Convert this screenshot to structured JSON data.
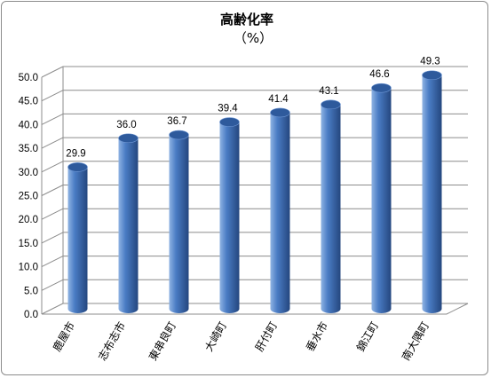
{
  "chart_data": {
    "type": "bar",
    "title": "高齢化率",
    "subtitle": "（%）",
    "categories": [
      "鹿屋市",
      "志布志市",
      "東串良町",
      "大崎町",
      "肝付町",
      "垂水市",
      "錦江町",
      "南大隅町"
    ],
    "values": [
      29.9,
      36.0,
      36.7,
      39.4,
      41.4,
      43.1,
      46.6,
      49.3
    ],
    "data_labels": [
      "29.9",
      "36.0",
      "36.7",
      "39.4",
      "41.4",
      "43.1",
      "46.6",
      "49.3"
    ],
    "y_ticks": [
      "0.0",
      "5.0",
      "10.0",
      "15.0",
      "20.0",
      "25.0",
      "30.0",
      "35.0",
      "40.0",
      "45.0",
      "50.0"
    ],
    "ylim": [
      0,
      50
    ],
    "grid": true,
    "legend": "none",
    "style": "3d-cylinder",
    "colors": {
      "bar_light": "#8fb3e3",
      "bar_mid": "#4a7cc4",
      "bar_dark": "#24467e",
      "bar_top": "#2e5a9c",
      "grid": "#8c8c8c"
    }
  }
}
